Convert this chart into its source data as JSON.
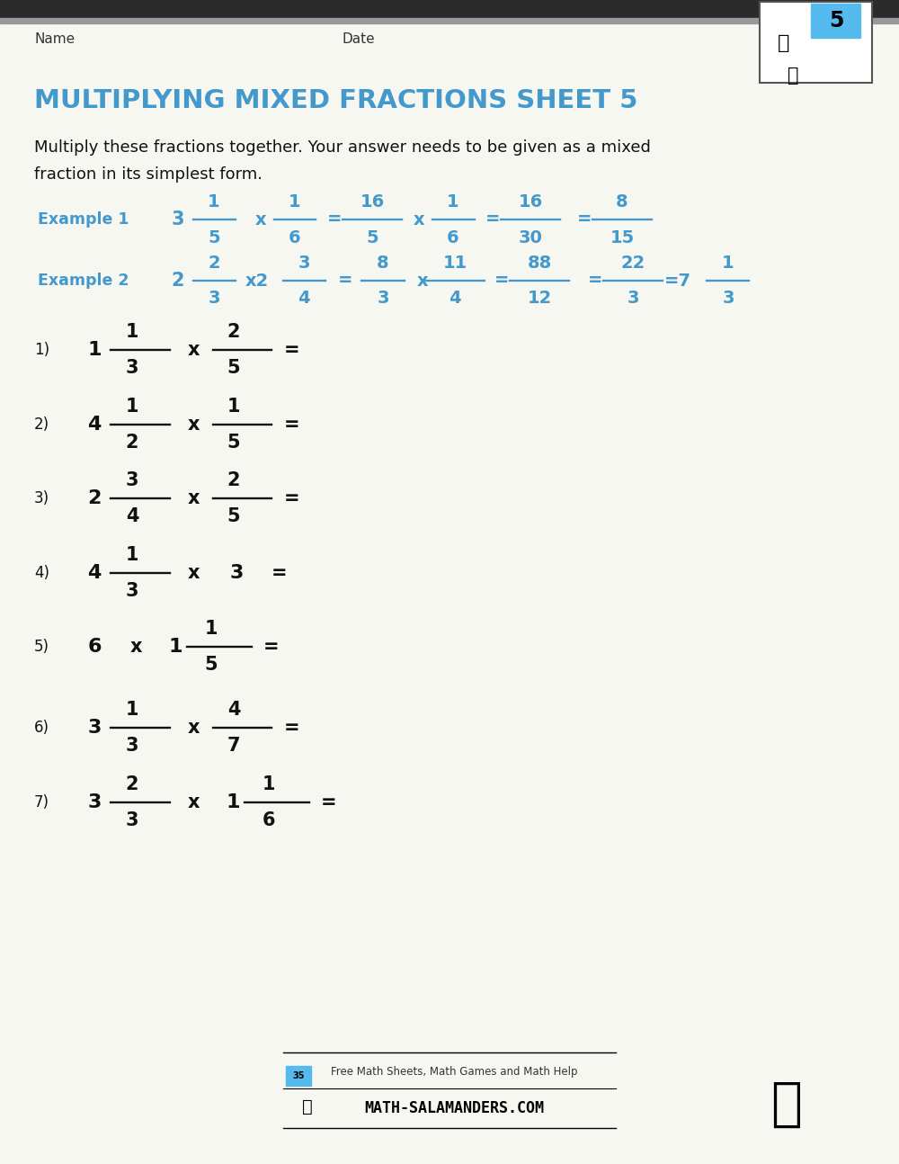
{
  "bg_color": "#F7F7F2",
  "top_bar_dark": "#2B2B2B",
  "top_bar_light": "#999999",
  "title": "MULTIPLYING MIXED FRACTIONS SHEET 5",
  "title_color": "#4499CC",
  "name_label": "Name",
  "date_label": "Date",
  "label_color": "#333333",
  "instruction_line1": "Multiply these fractions together. Your answer needs to be given as a mixed",
  "instruction_line2": "fraction in its simplest form.",
  "instruction_color": "#111111",
  "example_color": "#4499CC",
  "frac_color": "#4499CC",
  "prob_color": "#111111",
  "logo_num": "5",
  "logo_bg": "#55BBEE",
  "footer_text1": "Free Math Sheets, Math Games and Math Help",
  "footer_text2": "MATH-SALAMANDERS.COM"
}
